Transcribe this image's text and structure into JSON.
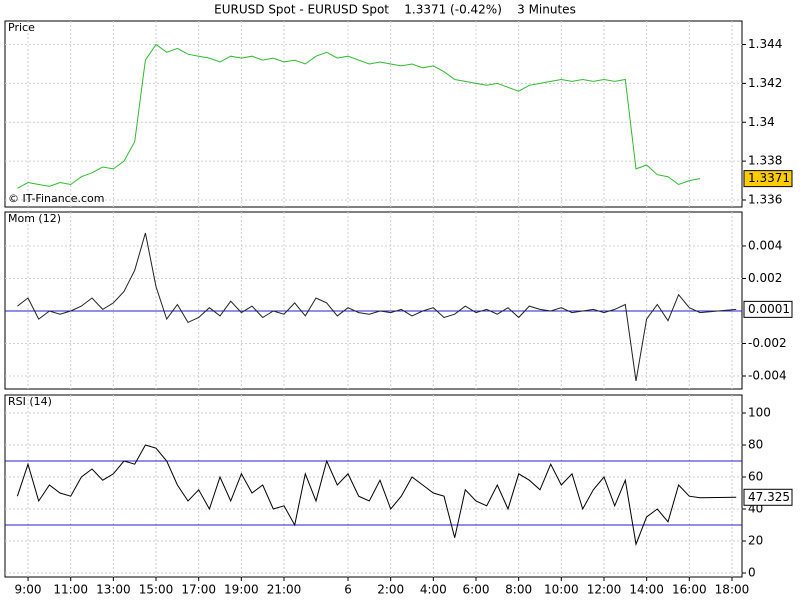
{
  "title": "EURUSD Spot - EURUSD Spot    1.3371 (-0.42%)    3 Minutes",
  "chart_data": [
    {
      "type": "line",
      "title": "Price",
      "annotation": "© IT-Finance.com",
      "color": "#33bb33",
      "x": [
        8.5,
        9,
        9.5,
        10,
        10.5,
        11,
        11.5,
        12,
        12.5,
        13,
        13.5,
        14,
        14.5,
        15,
        15.5,
        16,
        16.5,
        17,
        17.5,
        18,
        18.5,
        19,
        19.5,
        20,
        20.5,
        21,
        21.5,
        22,
        22.5,
        23,
        23.5,
        24,
        24.5,
        25,
        25.5,
        26,
        26.5,
        27,
        27.5,
        28,
        28.5,
        29,
        29.5,
        30,
        30.5,
        31,
        31.5,
        32,
        32.5,
        33,
        33.5,
        34,
        34.5,
        35,
        35.5,
        36,
        36.5,
        37,
        37.5,
        38,
        38.5,
        39,
        39.5,
        40,
        40.5
      ],
      "values": [
        1.3366,
        1.3369,
        1.3368,
        1.3367,
        1.3369,
        1.3368,
        1.3372,
        1.3374,
        1.3377,
        1.3376,
        1.338,
        1.339,
        1.3432,
        1.344,
        1.3436,
        1.3438,
        1.3435,
        1.3434,
        1.3433,
        1.3431,
        1.3434,
        1.3433,
        1.3434,
        1.3432,
        1.3433,
        1.3431,
        1.3432,
        1.343,
        1.3434,
        1.3436,
        1.3433,
        1.3434,
        1.3432,
        1.343,
        1.3431,
        1.343,
        1.3429,
        1.343,
        1.3428,
        1.3429,
        1.3426,
        1.3422,
        1.3421,
        1.342,
        1.3419,
        1.342,
        1.3418,
        1.3416,
        1.3419,
        1.342,
        1.3421,
        1.3422,
        1.3421,
        1.3422,
        1.3421,
        1.3422,
        1.3421,
        1.3422,
        1.3376,
        1.3378,
        1.3373,
        1.3372,
        1.3368,
        1.337,
        1.3371
      ],
      "last_value": 1.3371,
      "last_color": "#ffcc00",
      "ylim": [
        1.33564,
        1.34521
      ],
      "yticks": [
        1.344,
        1.342,
        1.34,
        1.338,
        1.336
      ],
      "xlim": [
        7.92,
        42.47
      ],
      "xticks": [
        {
          "value": 9,
          "label": "9:00"
        },
        {
          "value": 11,
          "label": "11:00"
        },
        {
          "value": 13,
          "label": "13:00"
        },
        {
          "value": 15,
          "label": "15:00"
        },
        {
          "value": 17,
          "label": "17:00"
        },
        {
          "value": 19,
          "label": "19:00"
        },
        {
          "value": 21,
          "label": "21:00"
        },
        {
          "value": 24,
          "label": "6"
        },
        {
          "value": 26,
          "label": "2:00"
        },
        {
          "value": 28,
          "label": "4:00"
        },
        {
          "value": 30,
          "label": "6:00"
        },
        {
          "value": 32,
          "label": "8:00"
        },
        {
          "value": 34,
          "label": "10:00"
        },
        {
          "value": 36,
          "label": "12:00"
        },
        {
          "value": 38,
          "label": "14:00"
        },
        {
          "value": 40,
          "label": "16:00"
        },
        {
          "value": 42,
          "label": "18:00"
        }
      ],
      "grid": true
    },
    {
      "type": "line",
      "title": "Mom (12)",
      "color": "#222222",
      "x": [
        8.5,
        9,
        9.5,
        10,
        10.5,
        11,
        11.5,
        12,
        12.5,
        13,
        13.5,
        14,
        14.5,
        15,
        15.5,
        16,
        16.5,
        17,
        17.5,
        18,
        18.5,
        19,
        19.5,
        20,
        20.5,
        21,
        21.5,
        22,
        22.5,
        23,
        23.5,
        24,
        24.5,
        25,
        25.5,
        26,
        26.5,
        27,
        27.5,
        28,
        28.5,
        29,
        29.5,
        30,
        30.5,
        31,
        31.5,
        32,
        32.5,
        33,
        33.5,
        34,
        34.5,
        35,
        35.5,
        36,
        36.5,
        37,
        37.5,
        38,
        38.5,
        39,
        39.5,
        40,
        40.5,
        42.2
      ],
      "values": [
        0.0003,
        0.0008,
        -0.0005,
        0.0,
        -0.0002,
        0.0,
        0.0003,
        0.0008,
        0.0001,
        0.0005,
        0.0012,
        0.0025,
        0.0048,
        0.0015,
        -0.0005,
        0.0004,
        -0.0007,
        -0.0004,
        0.0002,
        -0.0003,
        0.0006,
        -0.0001,
        0.0003,
        -0.0004,
        0.0,
        -0.0002,
        0.0005,
        -0.0003,
        0.0008,
        0.0005,
        -0.0003,
        0.0002,
        -0.0001,
        -0.0002,
        0.0,
        -0.0001,
        0.0001,
        -0.0003,
        0.0,
        0.0002,
        -0.0004,
        -0.0002,
        0.0003,
        -0.0001,
        0.0001,
        -0.0002,
        0.0002,
        -0.0004,
        0.0003,
        0.0001,
        0.0,
        0.0002,
        -0.0001,
        0.0,
        0.0001,
        -0.0001,
        0.0001,
        0.0004,
        -0.0043,
        -0.0005,
        0.0004,
        -0.0006,
        0.001,
        0.0002,
        -0.0001,
        0.0001
      ],
      "last_value": 0.0001,
      "last_color": "#ffffff",
      "hlines": [
        0
      ],
      "hline_color": "#2222cc",
      "ylim": [
        -0.0048,
        0.00609
      ],
      "yticks": [
        0.004,
        0.002,
        -0.002,
        -0.004
      ],
      "xlim": [
        7.92,
        42.47
      ],
      "xticks": [
        {
          "value": 9,
          "label": "9:00"
        },
        {
          "value": 11,
          "label": "11:00"
        },
        {
          "value": 13,
          "label": "13:00"
        },
        {
          "value": 15,
          "label": "15:00"
        },
        {
          "value": 17,
          "label": "17:00"
        },
        {
          "value": 19,
          "label": "19:00"
        },
        {
          "value": 21,
          "label": "21:00"
        },
        {
          "value": 24,
          "label": "6"
        },
        {
          "value": 26,
          "label": "2:00"
        },
        {
          "value": 28,
          "label": "4:00"
        },
        {
          "value": 30,
          "label": "6:00"
        },
        {
          "value": 32,
          "label": "8:00"
        },
        {
          "value": 34,
          "label": "10:00"
        },
        {
          "value": 36,
          "label": "12:00"
        },
        {
          "value": 38,
          "label": "14:00"
        },
        {
          "value": 40,
          "label": "16:00"
        },
        {
          "value": 42,
          "label": "18:00"
        }
      ],
      "grid": true
    },
    {
      "type": "line",
      "title": "RSI (14)",
      "color": "#000000",
      "x": [
        8.5,
        9,
        9.5,
        10,
        10.5,
        11,
        11.5,
        12,
        12.5,
        13,
        13.5,
        14,
        14.5,
        15,
        15.5,
        16,
        16.5,
        17,
        17.5,
        18,
        18.5,
        19,
        19.5,
        20,
        20.5,
        21,
        21.5,
        22,
        22.5,
        23,
        23.5,
        24,
        24.5,
        25,
        25.5,
        26,
        26.5,
        27,
        27.5,
        28,
        28.5,
        29,
        29.5,
        30,
        30.5,
        31,
        31.5,
        32,
        32.5,
        33,
        33.5,
        34,
        34.5,
        35,
        35.5,
        36,
        36.5,
        37,
        37.5,
        38,
        38.5,
        39,
        39.5,
        40,
        40.5,
        42.2
      ],
      "values": [
        48,
        68,
        45,
        55,
        50,
        48,
        60,
        65,
        58,
        62,
        70,
        68,
        80,
        78,
        70,
        55,
        45,
        52,
        40,
        60,
        45,
        62,
        50,
        55,
        40,
        42,
        30,
        62,
        45,
        70,
        55,
        62,
        48,
        45,
        58,
        40,
        48,
        60,
        55,
        50,
        48,
        22,
        52,
        45,
        42,
        55,
        40,
        62,
        58,
        52,
        68,
        55,
        62,
        40,
        52,
        60,
        42,
        58,
        18,
        35,
        40,
        32,
        55,
        48,
        47,
        47.325
      ],
      "last_value": 47.325,
      "last_color": "#ffffff",
      "hlines": [
        70,
        30
      ],
      "hline_color": "#2222cc",
      "ylim": [
        -2.5,
        111.25
      ],
      "yticks": [
        100,
        80,
        60,
        40,
        20,
        0
      ],
      "xlim": [
        7.92,
        42.47
      ],
      "xticks": [
        {
          "value": 9,
          "label": "9:00"
        },
        {
          "value": 11,
          "label": "11:00"
        },
        {
          "value": 13,
          "label": "13:00"
        },
        {
          "value": 15,
          "label": "15:00"
        },
        {
          "value": 17,
          "label": "17:00"
        },
        {
          "value": 19,
          "label": "19:00"
        },
        {
          "value": 21,
          "label": "21:00"
        },
        {
          "value": 24,
          "label": "6"
        },
        {
          "value": 26,
          "label": "2:00"
        },
        {
          "value": 28,
          "label": "4:00"
        },
        {
          "value": 30,
          "label": "6:00"
        },
        {
          "value": 32,
          "label": "8:00"
        },
        {
          "value": 34,
          "label": "10:00"
        },
        {
          "value": 36,
          "label": "12:00"
        },
        {
          "value": 38,
          "label": "14:00"
        },
        {
          "value": 40,
          "label": "16:00"
        },
        {
          "value": 42,
          "label": "18:00"
        }
      ],
      "grid": true
    }
  ]
}
